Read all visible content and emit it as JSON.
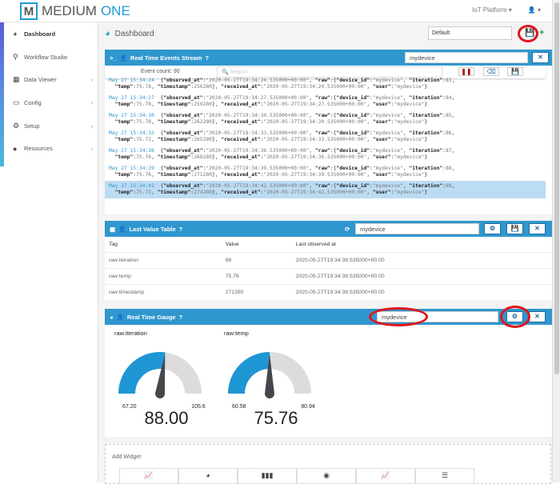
{
  "brand": {
    "logo_letter": "M",
    "name1": "MEDIUM",
    "name2": "ONE"
  },
  "topbar": {
    "platform": "IoT Platform ▾",
    "user": "👤 ▾"
  },
  "sidebar": {
    "items": [
      {
        "label": "Dashboard",
        "icon": "dashboard-icon",
        "glyph": "◕",
        "arrow": ""
      },
      {
        "label": "Workflow Studio",
        "icon": "sitemap-icon",
        "glyph": "⚲",
        "arrow": ""
      },
      {
        "label": "Data Viewer",
        "icon": "table-icon",
        "glyph": "▦",
        "arrow": "›"
      },
      {
        "label": "Config",
        "icon": "monitor-icon",
        "glyph": "▭",
        "arrow": "›"
      },
      {
        "label": "Setup",
        "icon": "gears-icon",
        "glyph": "⚙",
        "arrow": "›"
      },
      {
        "label": "Resources",
        "icon": "info-icon",
        "glyph": "●",
        "arrow": "›"
      }
    ]
  },
  "page": {
    "title": "Dashboard",
    "dashboard_select": "Default"
  },
  "events": {
    "title": "Real Time Events Stream",
    "device": "mydevice",
    "event_count": "Event count: 90",
    "search_placeholder": "Search",
    "entries": [
      {
        "ts": "May 27 15:34:24",
        "obs": "2020-05-27T19:34:24.535000+00:00",
        "iter": "83",
        "temp": "75.78",
        "stamp": "256280",
        "recv": "2020-05-27T19:34:24.535000+00:00"
      },
      {
        "ts": "May 27 15:34:27",
        "obs": "2020-05-27T19:34:27.535000+00:00",
        "iter": "84",
        "temp": "75.78",
        "stamp": "259280",
        "recv": "2020-05-27T19:34:27.535000+00:00"
      },
      {
        "ts": "May 27 15:34:30",
        "obs": "2020-05-27T19:34:30.535000+00:00",
        "iter": "85",
        "temp": "75.78",
        "stamp": "262280",
        "recv": "2020-05-27T19:34:30.535000+00:00"
      },
      {
        "ts": "May 27 15:34:33",
        "obs": "2020-05-27T19:34:33.535000+00:00",
        "iter": "86",
        "temp": "75.72",
        "stamp": "265280",
        "recv": "2020-05-27T19:34:33.535000+00:00"
      },
      {
        "ts": "May 27 15:34:36",
        "obs": "2020-05-27T19:34:36.535000+00:00",
        "iter": "87",
        "temp": "75.76",
        "stamp": "268280",
        "recv": "2020-05-27T19:34:36.535000+00:00"
      },
      {
        "ts": "May 27 15:34:39",
        "obs": "2020-05-27T19:34:39.535000+00:00",
        "iter": "88",
        "temp": "75.76",
        "stamp": "271280",
        "recv": "2020-05-27T19:34:39.535000+00:00"
      },
      {
        "ts": "May 27 15:34:42",
        "obs": "2020-05-27T19:34:42.535000+00:00",
        "iter": "89",
        "temp": "75.72",
        "stamp": "274280",
        "recv": "2020-05-27T19:34:42.535000+00:00"
      }
    ],
    "device_id": "mydevice",
    "user": "mydevice"
  },
  "lvt": {
    "title": "Last Value Table",
    "device": "mydevice",
    "headers": [
      "Tag",
      "Value",
      "Last observed at"
    ],
    "rows": [
      [
        "raw:iteration",
        "88",
        "2020-05-27T19:34:39.535000+00:00"
      ],
      [
        "raw:temp",
        "75.76",
        "2020-05-27T19:34:39.535000+00:00"
      ],
      [
        "raw:timestamp",
        "271280",
        "2020-05-27T19:34:39.535000+00:00"
      ]
    ]
  },
  "gauge": {
    "title": "Real Time Gauge",
    "device": "mydevice",
    "accent": "#1e96d4",
    "items": [
      {
        "label": "raw:iteration",
        "min": "67.20",
        "max": "105.6",
        "value": "88.00",
        "fraction": 0.54
      },
      {
        "label": "raw:temp",
        "min": "60.58",
        "max": "90.94",
        "value": "75.76",
        "fraction": 0.5
      }
    ]
  },
  "add_widget": {
    "title": "Add Widget",
    "tiles": [
      "📈",
      "◕",
      "▮▮▮",
      "◉",
      "📈",
      "☰"
    ]
  }
}
